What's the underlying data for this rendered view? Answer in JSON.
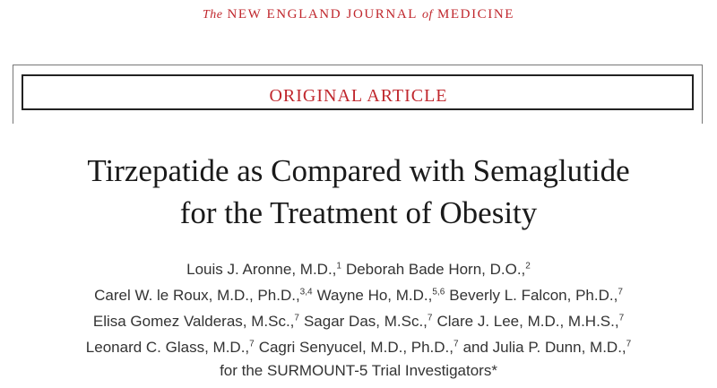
{
  "journal": {
    "parts": [
      "The",
      "NEW ENGLAND JOURNAL",
      "of",
      "MEDICINE"
    ]
  },
  "section": "ORIGINAL ARTICLE",
  "title": {
    "lines": [
      "Tirzepatide as Compared with Semaglutide",
      "for the Treatment of Obesity"
    ]
  },
  "authors": {
    "lines": [
      [
        {
          "text": "Louis J. Aronne, M.D.,",
          "sup": "1"
        },
        {
          "text": "Deborah Bade Horn, D.O.,",
          "sup": "2"
        }
      ],
      [
        {
          "text": "Carel W. le Roux, M.D., Ph.D.,",
          "sup": "3,4"
        },
        {
          "text": "Wayne Ho, M.D.,",
          "sup": "5,6"
        },
        {
          "text": "Beverly L. Falcon, Ph.D.,",
          "sup": "7"
        }
      ],
      [
        {
          "text": "Elisa Gomez Valderas, M.Sc.,",
          "sup": "7"
        },
        {
          "text": "Sagar Das, M.Sc.,",
          "sup": "7"
        },
        {
          "text": "Clare J. Lee, M.D., M.H.S.,",
          "sup": "7"
        }
      ],
      [
        {
          "text": "Leonard C. Glass, M.D.,",
          "sup": "7"
        },
        {
          "text": "Cagri Senyucel, M.D., Ph.D.,",
          "sup": "7"
        },
        {
          "text": "and Julia P. Dunn, M.D.,",
          "sup": "7"
        }
      ],
      [
        {
          "text": "for the SURMOUNT-5 Trial Investigators*"
        }
      ]
    ]
  }
}
